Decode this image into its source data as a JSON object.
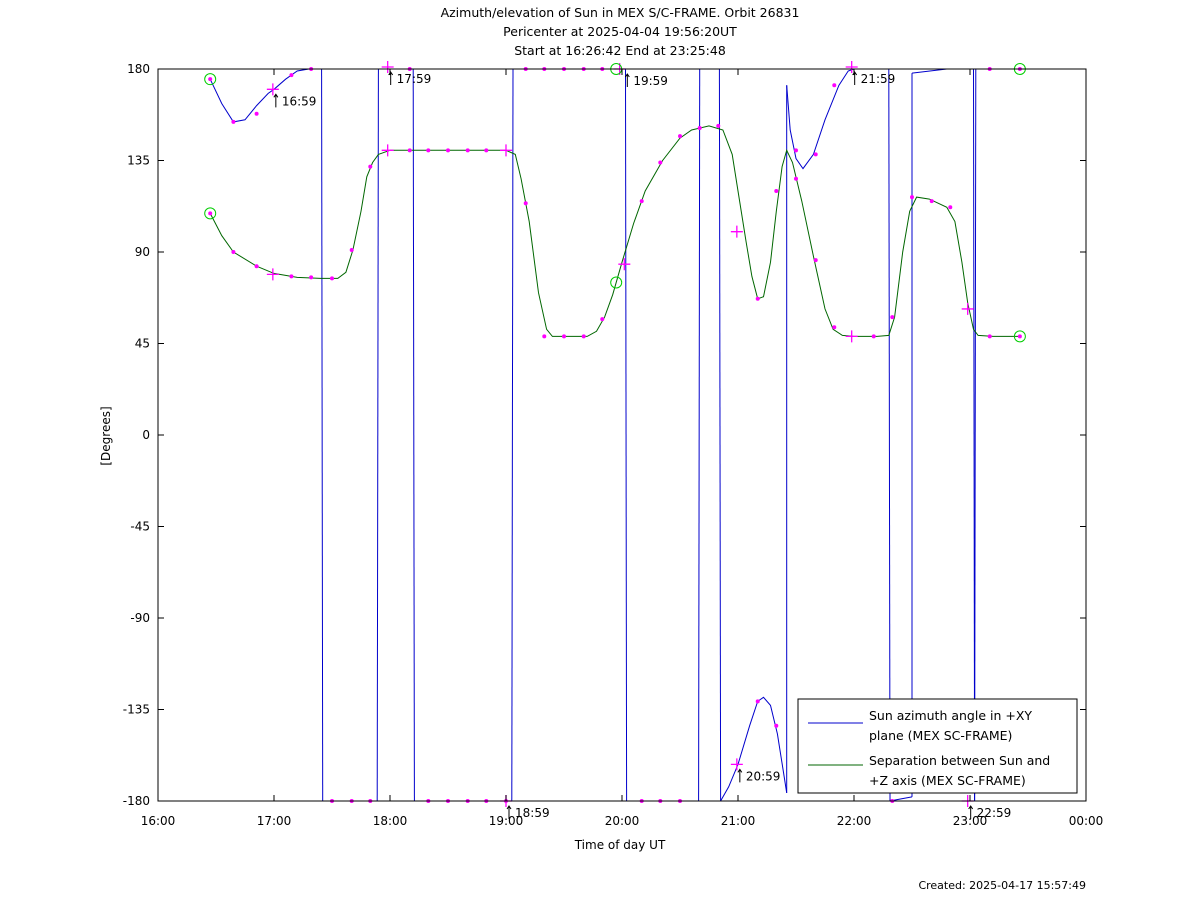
{
  "header": {
    "title_line1": "Azimuth/elevation of Sun in MEX S/C-FRAME.  Orbit 26831",
    "title_line2": "Pericenter at 2025-04-04 19:56:20UT",
    "title_line3": "Start at 16:26:42 End at 23:25:48"
  },
  "footer": {
    "created": "Created: 2025-04-17 15:57:49"
  },
  "chart_data": {
    "type": "line",
    "xlabel": "Time of day UT",
    "ylabel": "[Degrees]",
    "xlim": [
      16.0,
      24.0
    ],
    "ylim": [
      -180,
      180
    ],
    "x_ticks": [
      {
        "v": 16,
        "label": "16:00"
      },
      {
        "v": 17,
        "label": "17:00"
      },
      {
        "v": 18,
        "label": "18:00"
      },
      {
        "v": 19,
        "label": "19:00"
      },
      {
        "v": 20,
        "label": "20:00"
      },
      {
        "v": 21,
        "label": "21:00"
      },
      {
        "v": 22,
        "label": "22:00"
      },
      {
        "v": 23,
        "label": "23:00"
      },
      {
        "v": 24,
        "label": "00:00"
      }
    ],
    "y_ticks": [
      {
        "v": 180,
        "label": "180"
      },
      {
        "v": 135,
        "label": "135"
      },
      {
        "v": 90,
        "label": "90"
      },
      {
        "v": 45,
        "label": "45"
      },
      {
        "v": 0,
        "label": "0"
      },
      {
        "v": -45,
        "label": "-45"
      },
      {
        "v": -90,
        "label": "-90"
      },
      {
        "v": -135,
        "label": "-135"
      },
      {
        "v": -180,
        "label": "-180"
      }
    ],
    "legend_position": "bottom-right",
    "series": [
      {
        "name": "Sun azimuth angle in +XY plane (MEX SC-FRAME)",
        "legend_lines": [
          "Sun azimuth angle in +XY",
          "plane (MEX SC-FRAME)"
        ],
        "color": "#0000cc",
        "segments": [
          [
            [
              16.45,
              175
            ],
            [
              16.55,
              163
            ],
            [
              16.65,
              154
            ],
            [
              16.75,
              155
            ],
            [
              16.85,
              162
            ],
            [
              16.95,
              168
            ],
            [
              17.0,
              170
            ],
            [
              17.1,
              175
            ],
            [
              17.2,
              179
            ],
            [
              17.3,
              180
            ],
            [
              17.41,
              180
            ]
          ],
          [
            [
              17.41,
              180
            ],
            [
              17.42,
              -180
            ]
          ],
          [
            [
              17.42,
              -180
            ],
            [
              17.5,
              -180
            ],
            [
              17.7,
              -180
            ],
            [
              17.89,
              -180
            ]
          ],
          [
            [
              17.89,
              -180
            ],
            [
              17.9,
              180
            ]
          ],
          [
            [
              17.9,
              180
            ],
            [
              18.0,
              180
            ],
            [
              18.1,
              180
            ],
            [
              18.2,
              180
            ]
          ],
          [
            [
              18.2,
              180
            ],
            [
              18.21,
              -180
            ]
          ],
          [
            [
              18.21,
              -180
            ],
            [
              18.5,
              -180
            ],
            [
              18.8,
              -180
            ],
            [
              19.05,
              -180
            ]
          ],
          [
            [
              19.05,
              -180
            ],
            [
              19.06,
              180
            ]
          ],
          [
            [
              19.06,
              180
            ],
            [
              19.5,
              180
            ],
            [
              19.9,
              180
            ],
            [
              20.0,
              180
            ],
            [
              20.03,
              180
            ]
          ],
          [
            [
              20.03,
              180
            ],
            [
              20.04,
              -180
            ]
          ],
          [
            [
              20.04,
              -180
            ],
            [
              20.3,
              -180
            ],
            [
              20.66,
              -180
            ]
          ],
          [
            [
              20.66,
              -180
            ],
            [
              20.67,
              180
            ]
          ],
          [
            [
              20.67,
              180
            ],
            [
              20.84,
              180
            ]
          ],
          [
            [
              20.84,
              180
            ],
            [
              20.85,
              -180
            ]
          ],
          [
            [
              20.85,
              -180
            ],
            [
              20.92,
              -173
            ],
            [
              21.0,
              -162
            ],
            [
              21.1,
              -143
            ],
            [
              21.17,
              -131
            ],
            [
              21.22,
              -129
            ],
            [
              21.28,
              -133
            ],
            [
              21.34,
              -147
            ],
            [
              21.39,
              -165
            ],
            [
              21.42,
              -176
            ]
          ],
          [
            [
              21.42,
              -176
            ],
            [
              21.42,
              172
            ]
          ],
          [
            [
              21.42,
              172
            ],
            [
              21.45,
              150
            ],
            [
              21.5,
              136
            ],
            [
              21.56,
              131
            ],
            [
              21.65,
              138
            ],
            [
              21.75,
              155
            ],
            [
              21.87,
              172
            ],
            [
              21.95,
              179
            ],
            [
              22.0,
              180
            ],
            [
              22.3,
              180
            ]
          ],
          [
            [
              22.3,
              180
            ],
            [
              22.31,
              -180
            ]
          ],
          [
            [
              22.31,
              -180
            ],
            [
              22.4,
              -179
            ],
            [
              22.5,
              -178
            ]
          ],
          [
            [
              22.5,
              -178
            ],
            [
              22.5,
              178
            ]
          ],
          [
            [
              22.5,
              178
            ],
            [
              22.8,
              180
            ],
            [
              23.03,
              180
            ]
          ],
          [
            [
              23.03,
              180
            ],
            [
              23.04,
              -180
            ]
          ],
          [
            [
              23.04,
              -180
            ],
            [
              23.05,
              180
            ]
          ],
          [
            [
              23.05,
              180
            ],
            [
              23.43,
              180
            ]
          ]
        ]
      },
      {
        "name": "Separation between Sun and +Z axis (MEX SC-FRAME)",
        "legend_lines": [
          "Separation between Sun and",
          "+Z axis (MEX SC-FRAME)"
        ],
        "color": "#006600",
        "segments": [
          [
            [
              16.45,
              109
            ],
            [
              16.55,
              98
            ],
            [
              16.65,
              90
            ],
            [
              16.85,
              83
            ],
            [
              17.0,
              79.5
            ],
            [
              17.2,
              77.5
            ],
            [
              17.4,
              77
            ],
            [
              17.55,
              77
            ],
            [
              17.62,
              80
            ],
            [
              17.68,
              91
            ],
            [
              17.75,
              110
            ],
            [
              17.8,
              127
            ],
            [
              17.85,
              134
            ],
            [
              17.9,
              138
            ],
            [
              18.0,
              140
            ],
            [
              18.3,
              140
            ],
            [
              18.6,
              140
            ],
            [
              19.0,
              140
            ],
            [
              19.08,
              138
            ],
            [
              19.13,
              126
            ],
            [
              19.2,
              105
            ],
            [
              19.28,
              70
            ],
            [
              19.35,
              52
            ],
            [
              19.4,
              48.5
            ],
            [
              19.5,
              48.5
            ],
            [
              19.7,
              48.5
            ],
            [
              19.78,
              51
            ],
            [
              19.85,
              58
            ],
            [
              19.92,
              69
            ],
            [
              20.0,
              85
            ],
            [
              20.1,
              104
            ],
            [
              20.2,
              120
            ],
            [
              20.35,
              135
            ],
            [
              20.5,
              146
            ],
            [
              20.6,
              150
            ],
            [
              20.75,
              152
            ],
            [
              20.87,
              150
            ],
            [
              20.95,
              138
            ],
            [
              21.0,
              120
            ],
            [
              21.07,
              95
            ],
            [
              21.12,
              78
            ],
            [
              21.17,
              67
            ],
            [
              21.22,
              68
            ],
            [
              21.28,
              85
            ],
            [
              21.33,
              110
            ],
            [
              21.38,
              132
            ],
            [
              21.42,
              140
            ],
            [
              21.47,
              134
            ],
            [
              21.55,
              115
            ],
            [
              21.65,
              88
            ],
            [
              21.75,
              62
            ],
            [
              21.82,
              52
            ],
            [
              21.9,
              49
            ],
            [
              22.0,
              48.5
            ],
            [
              22.2,
              48.5
            ],
            [
              22.3,
              49
            ],
            [
              22.35,
              58
            ],
            [
              22.42,
              90
            ],
            [
              22.48,
              110
            ],
            [
              22.54,
              117
            ],
            [
              22.65,
              116
            ],
            [
              22.8,
              112
            ],
            [
              22.87,
              105
            ],
            [
              22.93,
              85
            ],
            [
              22.98,
              65
            ],
            [
              23.03,
              52
            ],
            [
              23.07,
              49
            ],
            [
              23.2,
              48.5
            ],
            [
              23.43,
              48.5
            ]
          ]
        ]
      }
    ],
    "markers": {
      "dots": [
        [
          16.45,
          175
        ],
        [
          16.65,
          154
        ],
        [
          16.85,
          158
        ],
        [
          17.15,
          177
        ],
        [
          17.32,
          180
        ],
        [
          16.45,
          109
        ],
        [
          16.65,
          90
        ],
        [
          16.85,
          83
        ],
        [
          17.15,
          78
        ],
        [
          17.32,
          77.5
        ],
        [
          17.5,
          77
        ],
        [
          17.67,
          91
        ],
        [
          17.83,
          132
        ],
        [
          18.17,
          140
        ],
        [
          18.33,
          140
        ],
        [
          18.5,
          140
        ],
        [
          18.67,
          140
        ],
        [
          18.83,
          140
        ],
        [
          18.17,
          180
        ],
        [
          17.67,
          -180
        ],
        [
          17.5,
          -180
        ],
        [
          17.83,
          -180
        ],
        [
          18.33,
          -180
        ],
        [
          18.5,
          -180
        ],
        [
          18.67,
          -180
        ],
        [
          18.83,
          -180
        ],
        [
          19.0,
          -180
        ],
        [
          19.17,
          114
        ],
        [
          19.33,
          48.5
        ],
        [
          19.5,
          48.5
        ],
        [
          19.67,
          48.5
        ],
        [
          19.83,
          57
        ],
        [
          20.17,
          115
        ],
        [
          20.33,
          134
        ],
        [
          20.5,
          147
        ],
        [
          20.67,
          151
        ],
        [
          20.83,
          152
        ],
        [
          19.17,
          180
        ],
        [
          19.33,
          180
        ],
        [
          19.5,
          180
        ],
        [
          19.67,
          180
        ],
        [
          19.83,
          180
        ],
        [
          20.17,
          -180
        ],
        [
          20.33,
          -180
        ],
        [
          20.5,
          -180
        ],
        [
          21.17,
          -131
        ],
        [
          21.33,
          -143
        ],
        [
          21.17,
          67
        ],
        [
          21.33,
          120
        ],
        [
          21.5,
          140
        ],
        [
          21.5,
          126
        ],
        [
          21.67,
          86
        ],
        [
          21.83,
          53
        ],
        [
          22.17,
          48.5
        ],
        [
          22.33,
          58
        ],
        [
          22.5,
          117
        ],
        [
          22.67,
          115
        ],
        [
          22.83,
          112
        ],
        [
          23.17,
          48.5
        ],
        [
          21.67,
          138
        ],
        [
          21.83,
          172
        ],
        [
          22.33,
          -180
        ],
        [
          23.17,
          180
        ],
        [
          23.43,
          180
        ],
        [
          23.43,
          48.5
        ]
      ],
      "crosses": [
        [
          16.99,
          170
        ],
        [
          16.99,
          79
        ],
        [
          17.98,
          181
        ],
        [
          17.98,
          140
        ],
        [
          19.0,
          -180
        ],
        [
          19.0,
          140
        ],
        [
          19.98,
          180
        ],
        [
          20.02,
          84
        ],
        [
          20.99,
          -162
        ],
        [
          20.99,
          100
        ],
        [
          21.98,
          181
        ],
        [
          21.98,
          48.5
        ],
        [
          22.98,
          -180
        ],
        [
          22.98,
          62
        ]
      ],
      "circles": [
        [
          16.45,
          175
        ],
        [
          16.45,
          109
        ],
        [
          19.95,
          180
        ],
        [
          19.95,
          75
        ],
        [
          23.43,
          180
        ],
        [
          23.43,
          48.5
        ]
      ]
    },
    "annotations": [
      {
        "x": 16.99,
        "y": 170,
        "label": "16:59"
      },
      {
        "x": 17.98,
        "y": 181,
        "label": "17:59"
      },
      {
        "x": 19.0,
        "y": -180,
        "label": "18:59"
      },
      {
        "x": 20.02,
        "y": 180,
        "label": "19:59"
      },
      {
        "x": 20.99,
        "y": -162,
        "label": "20:59"
      },
      {
        "x": 21.98,
        "y": 181,
        "label": "21:59"
      },
      {
        "x": 22.98,
        "y": -180,
        "label": "22:59"
      }
    ]
  }
}
